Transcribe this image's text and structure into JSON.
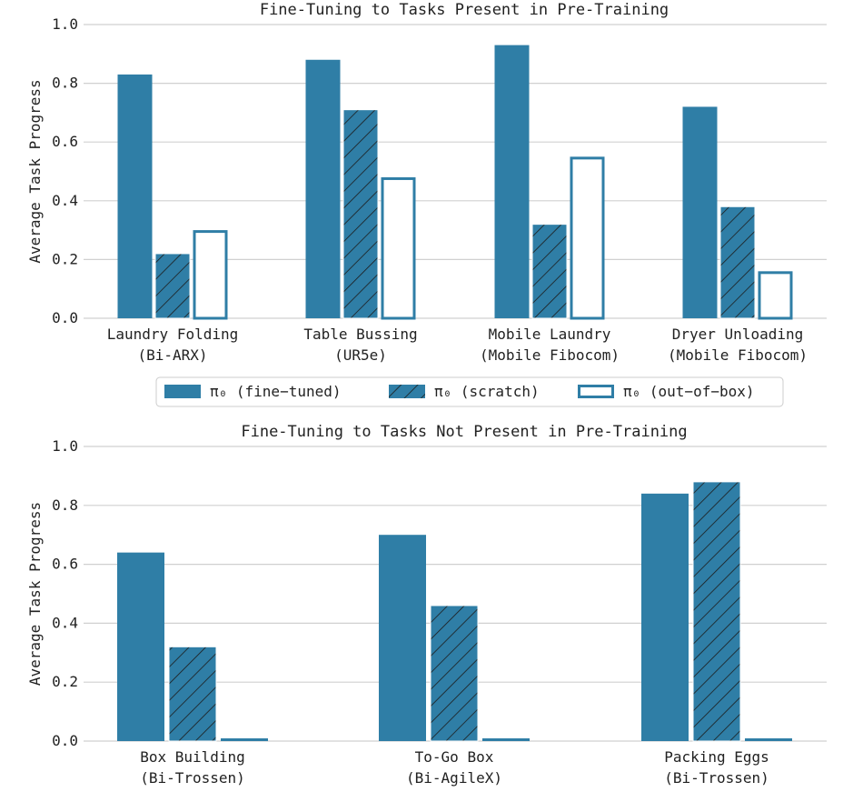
{
  "colors": {
    "bar": "#2f7ea6",
    "grid": "#d0d0d0",
    "hatch_line": "#1c1c1c",
    "axis_text": "#222222"
  },
  "legend": {
    "items": [
      {
        "label": "π₀ (fine−tuned)",
        "style": "solid"
      },
      {
        "label": "π₀ (scratch)",
        "style": "hatched"
      },
      {
        "label": "π₀ (out−of−box)",
        "style": "outline"
      }
    ]
  },
  "chart_data": [
    {
      "type": "bar",
      "title": "Fine-Tuning to Tasks Present in Pre-Training",
      "ylabel": "Average Task Progress",
      "ylim": [
        0,
        1.0
      ],
      "yticks": [
        "0.0",
        "0.2",
        "0.4",
        "0.6",
        "0.8",
        "1.0"
      ],
      "grid": true,
      "categories": [
        [
          "Laundry Folding",
          "(Bi-ARX)"
        ],
        [
          "Table Bussing",
          "(UR5e)"
        ],
        [
          "Mobile Laundry",
          "(Mobile Fibocom)"
        ],
        [
          "Dryer Unloading",
          "(Mobile Fibocom)"
        ]
      ],
      "series": [
        {
          "name": "π₀ (fine−tuned)",
          "style": "solid",
          "values": [
            0.83,
            0.88,
            0.93,
            0.72
          ]
        },
        {
          "name": "π₀ (scratch)",
          "style": "hatched",
          "values": [
            0.22,
            0.71,
            0.32,
            0.38
          ]
        },
        {
          "name": "π₀ (out−of−box)",
          "style": "outline",
          "values": [
            0.3,
            0.48,
            0.55,
            0.16
          ]
        }
      ]
    },
    {
      "type": "bar",
      "title": "Fine-Tuning to Tasks Not Present in Pre-Training",
      "ylabel": "Average Task Progress",
      "ylim": [
        0,
        1.0
      ],
      "yticks": [
        "0.0",
        "0.2",
        "0.4",
        "0.6",
        "0.8",
        "1.0"
      ],
      "grid": true,
      "categories": [
        [
          "Box Building",
          "(Bi-Trossen)"
        ],
        [
          "To-Go Box",
          "(Bi-AgileX)"
        ],
        [
          "Packing Eggs",
          "(Bi-Trossen)"
        ]
      ],
      "series": [
        {
          "name": "π₀ (fine−tuned)",
          "style": "solid",
          "values": [
            0.64,
            0.7,
            0.84
          ]
        },
        {
          "name": "π₀ (scratch)",
          "style": "hatched",
          "values": [
            0.32,
            0.46,
            0.88
          ]
        },
        {
          "name": "π₀ (out−of−box)",
          "style": "solid",
          "values": [
            0.0,
            0.0,
            0.0
          ]
        }
      ]
    }
  ]
}
